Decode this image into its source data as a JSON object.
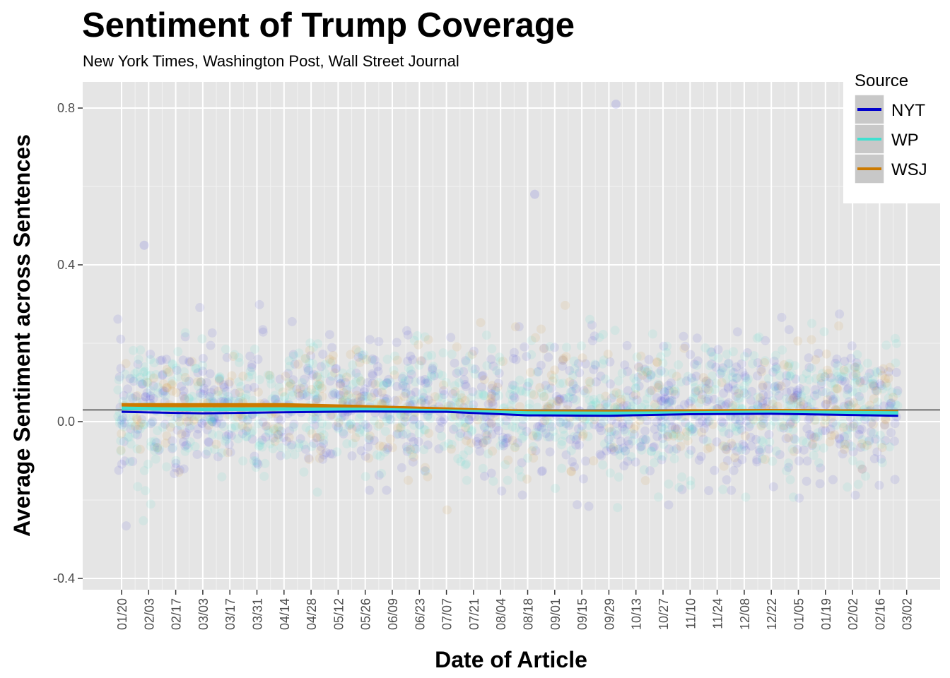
{
  "title": "Sentiment of Trump Coverage",
  "subtitle": "New York Times, Washington Post, Wall Street Journal",
  "chart_data": {
    "type": "scatter",
    "title": "Sentiment of Trump Coverage",
    "subtitle": "New York Times, Washington Post, Wall Street Journal",
    "xlabel": "Date of Article",
    "ylabel": "Average Sentiment across Sentences",
    "x_ticks": [
      "01/20",
      "02/03",
      "02/17",
      "03/03",
      "03/17",
      "03/31",
      "04/14",
      "04/28",
      "05/12",
      "05/26",
      "06/09",
      "06/23",
      "07/07",
      "07/21",
      "08/04",
      "08/18",
      "09/01",
      "09/15",
      "09/29",
      "10/13",
      "10/27",
      "11/10",
      "11/24",
      "12/08",
      "12/22",
      "01/05",
      "01/19",
      "02/02",
      "02/16",
      "03/02"
    ],
    "y_ticks": [
      "-0.4",
      "0.0",
      "0.4",
      "0.8"
    ],
    "ylim": [
      -0.42,
      0.87
    ],
    "reference_line_y": 0.03,
    "grid": true,
    "legend": {
      "title": "Source",
      "position": "top-right"
    },
    "series": [
      {
        "name": "NYT",
        "color": "#0000cc",
        "trend_x": [
          "01/20",
          "03/03",
          "04/14",
          "05/26",
          "07/07",
          "08/18",
          "09/29",
          "11/10",
          "12/22",
          "02/02",
          "03/02"
        ],
        "trend_y": [
          0.025,
          0.021,
          0.024,
          0.026,
          0.025,
          0.016,
          0.015,
          0.019,
          0.02,
          0.017,
          0.015
        ]
      },
      {
        "name": "WP",
        "color": "#40e0d0",
        "trend_x": [
          "01/20",
          "03/03",
          "04/14",
          "05/26",
          "07/07",
          "08/18",
          "09/29",
          "11/10",
          "12/22",
          "02/02",
          "03/02"
        ],
        "trend_y": [
          0.034,
          0.031,
          0.032,
          0.031,
          0.027,
          0.022,
          0.021,
          0.022,
          0.024,
          0.023,
          0.022
        ]
      },
      {
        "name": "WSJ",
        "color": "#cc7a00",
        "trend_x": [
          "01/20",
          "03/03",
          "04/14",
          "05/26",
          "07/07",
          "08/18",
          "09/29",
          "11/10",
          "12/22",
          "02/02",
          "03/02"
        ],
        "trend_y": [
          0.042,
          0.042,
          0.042,
          0.037,
          0.031,
          0.025,
          0.024,
          0.026,
          0.027,
          0.026,
          0.024
        ]
      }
    ],
    "scatter_y_spread": {
      "center": 0.03,
      "typical_range": [
        -0.2,
        0.25
      ]
    },
    "notable_points": [
      {
        "x": "09/29",
        "y": 0.81,
        "series": "NYT"
      },
      {
        "x": "08/18",
        "y": 0.58,
        "series": "NYT"
      },
      {
        "x": "01/20",
        "y": 0.45,
        "series": "WP"
      }
    ]
  }
}
